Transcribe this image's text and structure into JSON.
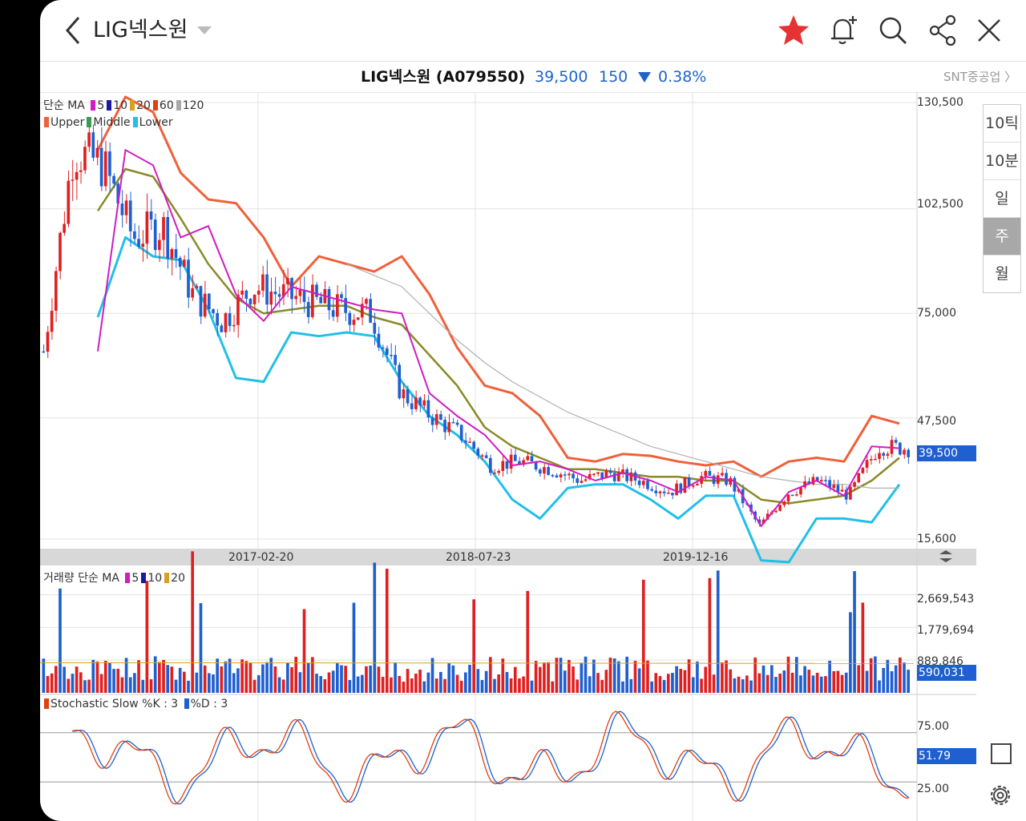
{
  "appbar": {
    "title": "LIG넥스원",
    "icons": [
      "back-icon",
      "dropdown-icon",
      "star-icon",
      "bell-add-icon",
      "search-icon",
      "share-icon",
      "close-icon"
    ],
    "star_color": "#e63232"
  },
  "quote": {
    "name": "LIG넥스원 (A079550)",
    "price": "39,500",
    "diff": "150",
    "rate": "0.38%",
    "related": "SNT중공업 〉",
    "down_color": "#1e64c8"
  },
  "periods": [
    {
      "label": "10틱",
      "selected": false
    },
    {
      "label": "10분",
      "selected": false
    },
    {
      "label": "일",
      "selected": false
    },
    {
      "label": "주",
      "selected": true
    },
    {
      "label": "월",
      "selected": false
    }
  ],
  "price_panel": {
    "legend_ma": "단순 MA",
    "ma_items": [
      {
        "label": "5",
        "color": "#d01cc0"
      },
      {
        "label": "10",
        "color": "#1a1aa0"
      },
      {
        "label": "20",
        "color": "#d8a020"
      },
      {
        "label": "60",
        "color": "#e04010"
      },
      {
        "label": "120",
        "color": "#a8a8a8"
      }
    ],
    "bb_items": [
      {
        "label": "Upper",
        "color": "#f0603a"
      },
      {
        "label": "Middle",
        "color": "#3a9a50"
      },
      {
        "label": "Lower",
        "color": "#20c0e8"
      }
    ],
    "y_ticks": [
      "130,500",
      "102,500",
      "75,000",
      "47,500",
      "15,600"
    ],
    "current_label": "39,500",
    "x_dates": [
      "2017-02-20",
      "2018-07-23",
      "2019-12-16"
    ]
  },
  "volume_panel": {
    "legend": "거래량 단순 MA",
    "ma_items": [
      {
        "label": "5",
        "color": "#d01cc0"
      },
      {
        "label": "10",
        "color": "#1a1aa0"
      },
      {
        "label": "20",
        "color": "#d8a020"
      }
    ],
    "y_ticks": [
      "2,669,543",
      "1,779,694",
      "889,846"
    ],
    "current_label": "590,031"
  },
  "stoch_panel": {
    "legend_k": "Stochastic Slow %K : 3",
    "legend_d": "%D : 3",
    "k_color": "#e04010",
    "d_color": "#1f5fd0",
    "y_ticks": [
      "75.00",
      "25.00"
    ],
    "current_label": "51.79"
  },
  "chart_data": {
    "type": "line",
    "title": "LIG넥스원 (A079550)",
    "interval": "weekly",
    "x_tick_labels": [
      "2017-02-20",
      "2018-07-23",
      "2019-12-16"
    ],
    "y_ticks": [
      130500,
      102500,
      75000,
      47500,
      15600
    ],
    "ylim": [
      15600,
      130500
    ],
    "series": [
      {
        "name": "Upper",
        "values": [
          118000,
          132000,
          128000,
          112000,
          105000,
          104000,
          95000,
          82000,
          90000,
          88000,
          86000,
          90000,
          80000,
          66000,
          56000,
          54000,
          48000,
          37000,
          36000,
          38000,
          37500,
          36000,
          35000,
          36000,
          32000,
          36000,
          37000,
          36000,
          48000,
          46000
        ]
      },
      {
        "name": "Middle",
        "values": [
          102000,
          113000,
          111000,
          100000,
          88000,
          79000,
          75000,
          76000,
          77000,
          77000,
          74000,
          72000,
          64000,
          56000,
          45000,
          40000,
          37000,
          34000,
          34000,
          33000,
          32000,
          32000,
          31000,
          31000,
          26000,
          25000,
          26000,
          27000,
          31000,
          37000
        ]
      },
      {
        "name": "Lower",
        "values": [
          74000,
          95000,
          90000,
          89000,
          76000,
          58000,
          57000,
          70000,
          69000,
          70000,
          69000,
          57000,
          48000,
          43000,
          36000,
          26000,
          21000,
          29000,
          30000,
          30000,
          26000,
          21000,
          27000,
          27000,
          10000,
          9500,
          21000,
          21000,
          20000,
          30000
        ]
      },
      {
        "name": "MA120",
        "values": [
          null,
          null,
          null,
          null,
          null,
          null,
          null,
          null,
          null,
          88000,
          85000,
          82000,
          75000,
          68000,
          62000,
          57000,
          53000,
          49000,
          46000,
          43000,
          40000,
          38000,
          36000,
          34000,
          32000,
          31000,
          30000,
          30000,
          29000,
          29000
        ]
      },
      {
        "name": "Close",
        "values": [
          65000,
          118000,
          114000,
          95000,
          98000,
          80000,
          73000,
          82000,
          80000,
          78000,
          76000,
          75000,
          54000,
          48000,
          43000,
          35000,
          36000,
          34000,
          31000,
          33000,
          31000,
          28000,
          32000,
          31000,
          19000,
          28000,
          31000,
          27000,
          40000,
          39500
        ]
      }
    ],
    "volume_ticks": [
      2669543,
      1779694,
      889846
    ],
    "volume_last": 590031,
    "stochastic_ticks": [
      75,
      25
    ],
    "stochastic_last": 51.79
  }
}
